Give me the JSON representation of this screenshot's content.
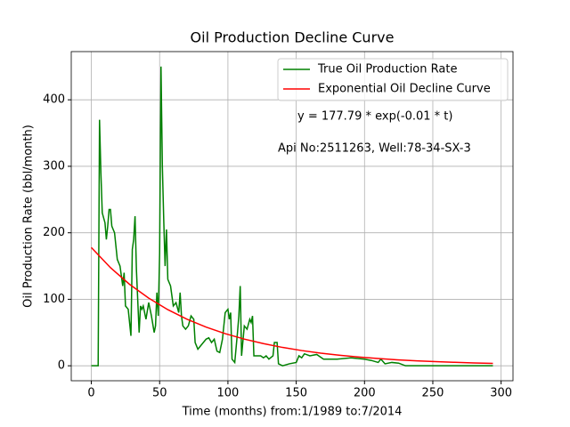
{
  "chart_data": {
    "type": "line",
    "title": "Oil Production Decline Curve",
    "xlabel": "Time (months) from:1/1989 to:7/2014",
    "ylabel": "Oil Production Rate (bbl/month)",
    "annotations": [
      "y = 177.79 * exp(-0.01 * t)",
      "Api No:2511263, Well:78-34-SX-3"
    ],
    "xlim": [
      -14.7,
      308.7
    ],
    "ylim": [
      -22.5,
      472.5
    ],
    "xticks": [
      0,
      50,
      100,
      150,
      200,
      250,
      300
    ],
    "yticks": [
      0,
      100,
      200,
      300,
      400
    ],
    "grid": true,
    "legend": "upper right",
    "series": [
      {
        "name": "True Oil Production Rate",
        "color": "#008000",
        "x": [
          0,
          5,
          6,
          7,
          8,
          10,
          11,
          12,
          13,
          14,
          15,
          17,
          19,
          21,
          23,
          24,
          25,
          27,
          29,
          30,
          31,
          32,
          33,
          35,
          36,
          37,
          38,
          40,
          42,
          44,
          46,
          47,
          48,
          49,
          50,
          51,
          52,
          53,
          54,
          55,
          56,
          58,
          60,
          62,
          64,
          65,
          66,
          67,
          69,
          71,
          73,
          75,
          76,
          78,
          80,
          82,
          84,
          86,
          88,
          90,
          92,
          94,
          96,
          98,
          100,
          101,
          102,
          103,
          105,
          107,
          108,
          109,
          110,
          112,
          114,
          116,
          117,
          118,
          119,
          121,
          124,
          126,
          128,
          130,
          133,
          134,
          136,
          137,
          140,
          145,
          150,
          152,
          154,
          156,
          160,
          165,
          170,
          180,
          190,
          200,
          205,
          210,
          212,
          215,
          220,
          225,
          230,
          294
        ],
        "values": [
          0,
          0,
          370,
          290,
          230,
          215,
          190,
          210,
          235,
          235,
          210,
          200,
          160,
          150,
          120,
          140,
          90,
          85,
          45,
          175,
          190,
          225,
          145,
          50,
          90,
          85,
          90,
          70,
          95,
          75,
          50,
          60,
          110,
          75,
          170,
          450,
          300,
          220,
          150,
          205,
          130,
          120,
          90,
          95,
          80,
          110,
          75,
          60,
          55,
          60,
          75,
          70,
          35,
          25,
          30,
          35,
          40,
          42,
          35,
          40,
          22,
          20,
          40,
          80,
          85,
          70,
          80,
          10,
          5,
          50,
          75,
          120,
          15,
          60,
          55,
          70,
          65,
          75,
          15,
          15,
          15,
          12,
          15,
          10,
          15,
          35,
          35,
          3,
          0,
          3,
          5,
          15,
          12,
          18,
          15,
          17,
          10,
          10,
          12,
          10,
          8,
          5,
          10,
          3,
          5,
          4,
          0,
          0
        ]
      },
      {
        "name": "Exponential Oil Decline Curve",
        "color": "#ff0000",
        "x": [
          0,
          14,
          28,
          42,
          56,
          70,
          84,
          98,
          112,
          126,
          140,
          154,
          168,
          182,
          196,
          210,
          224,
          238,
          252,
          266,
          280,
          294
        ],
        "values": [
          177.8,
          147.6,
          122.5,
          101.7,
          84.4,
          70.1,
          58.2,
          48.3,
          40.1,
          33.3,
          27.6,
          22.9,
          19.0,
          15.8,
          13.1,
          10.9,
          9.0,
          7.5,
          6.2,
          5.2,
          4.3,
          3.6
        ]
      }
    ]
  }
}
